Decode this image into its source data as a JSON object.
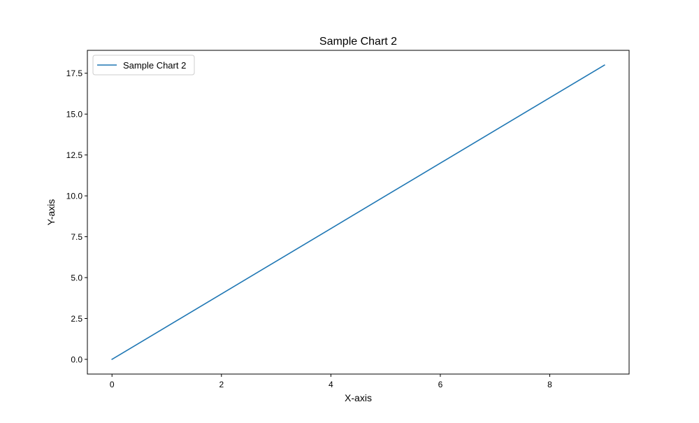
{
  "chart_data": {
    "type": "line",
    "title": "Sample Chart 2",
    "xlabel": "X-axis",
    "ylabel": "Y-axis",
    "xlim": [
      -0.45,
      9.45
    ],
    "ylim": [
      -0.9,
      18.9
    ],
    "xticks": [
      0,
      2,
      4,
      6,
      8
    ],
    "xtick_labels": [
      "0",
      "2",
      "4",
      "6",
      "8"
    ],
    "yticks": [
      0,
      2.5,
      5,
      7.5,
      10,
      12.5,
      15,
      17.5
    ],
    "ytick_labels": [
      "0.0",
      "2.5",
      "5.0",
      "7.5",
      "10.0",
      "12.5",
      "15.0",
      "17.5"
    ],
    "grid": false,
    "legend_position": "upper-left",
    "series": [
      {
        "name": "Sample Chart 2",
        "color": "#1f77b4",
        "x": [
          0,
          1,
          2,
          3,
          4,
          5,
          6,
          7,
          8,
          9
        ],
        "y": [
          0,
          2,
          4,
          6,
          8,
          10,
          12,
          14,
          16,
          18
        ]
      }
    ]
  }
}
